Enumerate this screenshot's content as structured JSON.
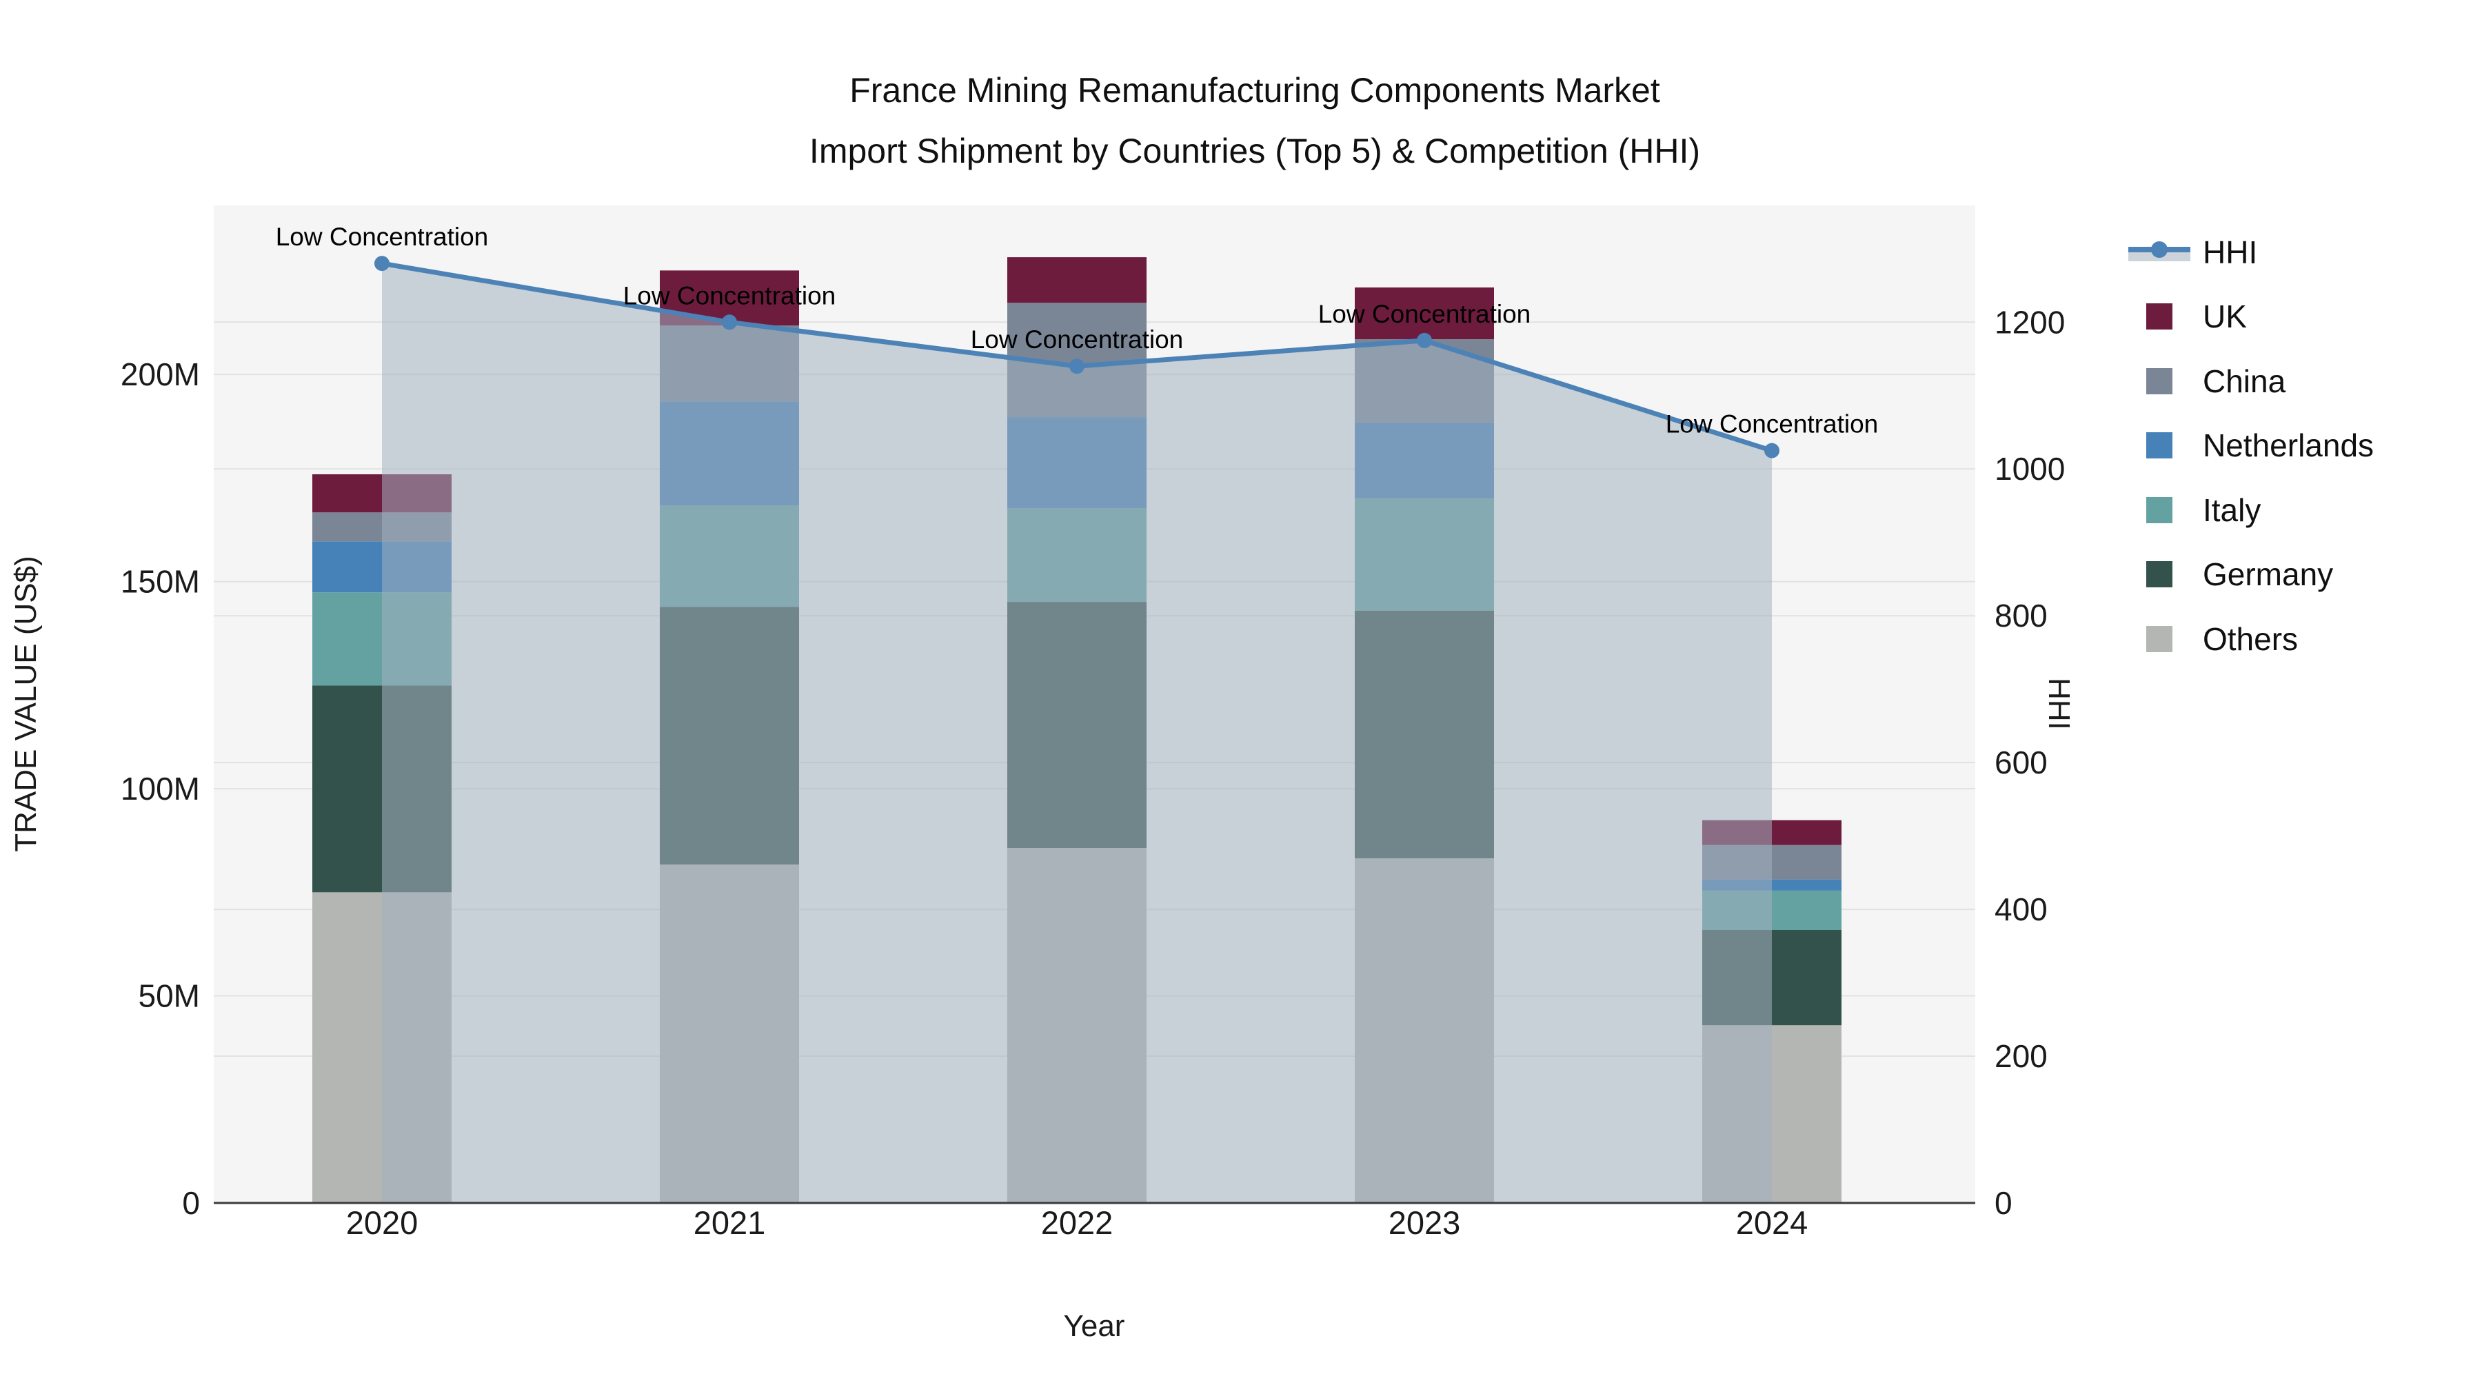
{
  "title": {
    "line1": "France Mining Remanufacturing Components Market",
    "line2": "Import Shipment by Countries (Top 5) & Competition (HHI)"
  },
  "chart_data": {
    "type": "bar+line",
    "title": "France Mining Remanufacturing Components Market Import Shipment by Countries (Top 5) & Competition (HHI)",
    "categories": [
      "2020",
      "2021",
      "2022",
      "2023",
      "2024"
    ],
    "series": [
      {
        "name": "Others",
        "color": "#B4B6B4",
        "values": [
          75.0,
          81.7,
          85.7,
          83.2,
          42.9
        ]
      },
      {
        "name": "Germany",
        "color": "#33524C",
        "values": [
          49.9,
          62.2,
          59.4,
          59.8,
          23.0
        ]
      },
      {
        "name": "Italy",
        "color": "#64A2A2",
        "values": [
          22.5,
          24.5,
          22.6,
          27.1,
          9.5
        ]
      },
      {
        "name": "Netherlands",
        "color": "#4682B8",
        "values": [
          12.3,
          25.1,
          22.0,
          18.3,
          2.7
        ]
      },
      {
        "name": "China",
        "color": "#7A8696",
        "values": [
          7.0,
          18.3,
          27.6,
          20.1,
          8.3
        ]
      },
      {
        "name": "UK",
        "color": "#6E1C3E",
        "values": [
          9.2,
          13.3,
          11.0,
          12.5,
          6.0
        ]
      }
    ],
    "bar_totals": [
      175.9,
      225.1,
      228.3,
      221.0,
      92.4
    ],
    "hhi": {
      "name": "HHI",
      "color": "#4D82B6",
      "fill_color": "rgba(163,177,191,0.55)",
      "values": [
        1280,
        1200,
        1140,
        1175,
        1025
      ],
      "annotation_label": "Low Concentration"
    },
    "xlabel": "Year",
    "ylabel_left": "TRADE VALUE (US$)",
    "ylabel_right": "HHI",
    "yticks_left": {
      "values": [
        0,
        50,
        100,
        150,
        200
      ],
      "labels": [
        "0",
        "50M",
        "100M",
        "150M",
        "200M"
      ]
    },
    "yticks_right": {
      "values": [
        0,
        200,
        400,
        600,
        800,
        1000,
        1200
      ],
      "labels": [
        "0",
        "200",
        "400",
        "600",
        "800",
        "1000",
        "1200"
      ]
    },
    "ylim_left": [
      0,
      240.8
    ],
    "ylim_right": [
      0,
      1359
    ],
    "grid": true,
    "legend_position": "right",
    "legend_labels": [
      "HHI",
      "UK",
      "China",
      "Netherlands",
      "Italy",
      "Germany",
      "Others"
    ]
  },
  "colors": {
    "plot_bg": "#F5F5F5",
    "grid": "#E2E2E2",
    "axis_line": "#3B3B3B",
    "text": "#111111"
  }
}
